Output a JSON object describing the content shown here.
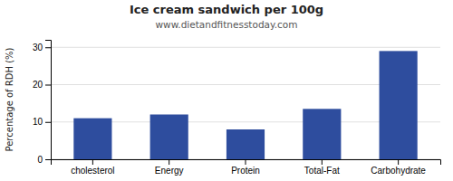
{
  "chart_data": {
    "type": "bar",
    "title": "Ice cream sandwich per 100g",
    "subtitle": "www.dietandfitnesstoday.com",
    "categories": [
      "cholesterol",
      "Energy",
      "Protein",
      "Total-Fat",
      "Carbohydrate"
    ],
    "values": [
      11,
      12,
      8,
      13.5,
      29
    ],
    "color": "#2e4d9e",
    "ylabel": "Percentage of RDH (%)",
    "ylim": [
      0,
      32
    ],
    "yticks": [
      0,
      10,
      20,
      30
    ],
    "grid": true
  }
}
